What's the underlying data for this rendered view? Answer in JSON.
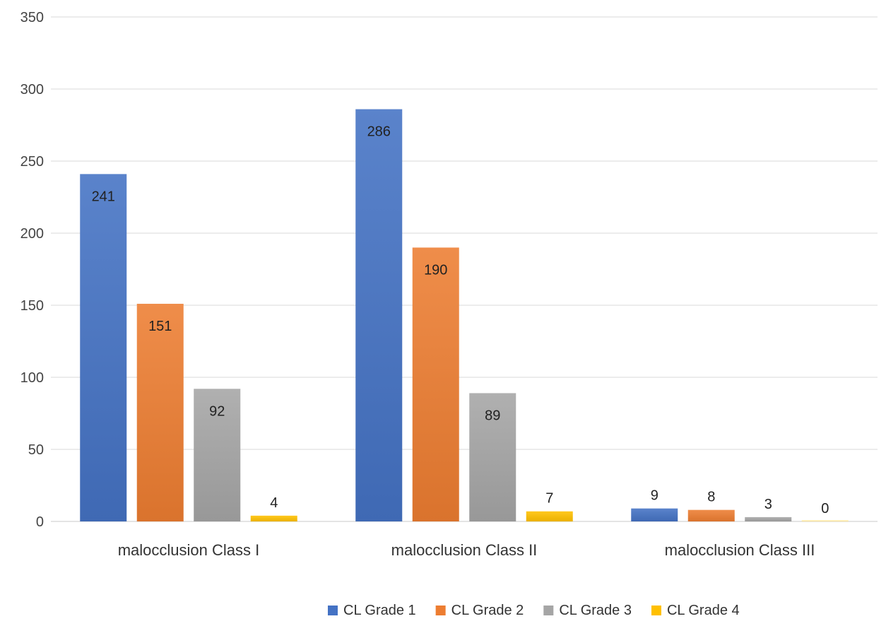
{
  "chart_data": {
    "type": "bar",
    "title": "",
    "xlabel": "",
    "ylabel": "",
    "categories": [
      "malocclusion Class I",
      "malocclusion Class II",
      "malocclusion Class III"
    ],
    "series": [
      {
        "name": "CL Grade 1",
        "values": [
          241,
          286,
          9
        ],
        "color": "#4472C4"
      },
      {
        "name": "CL Grade 2",
        "values": [
          151,
          190,
          8
        ],
        "color": "#ED7D31"
      },
      {
        "name": "CL Grade 3",
        "values": [
          92,
          89,
          3
        ],
        "color": "#A5A5A5"
      },
      {
        "name": "CL Grade 4",
        "values": [
          4,
          7,
          0
        ],
        "color": "#FFC000"
      }
    ],
    "ylim": [
      0,
      350
    ],
    "yticks": [
      0,
      50,
      100,
      150,
      200,
      250,
      300,
      350
    ],
    "grid": true,
    "legend_position": "bottom",
    "data_labels": true
  }
}
